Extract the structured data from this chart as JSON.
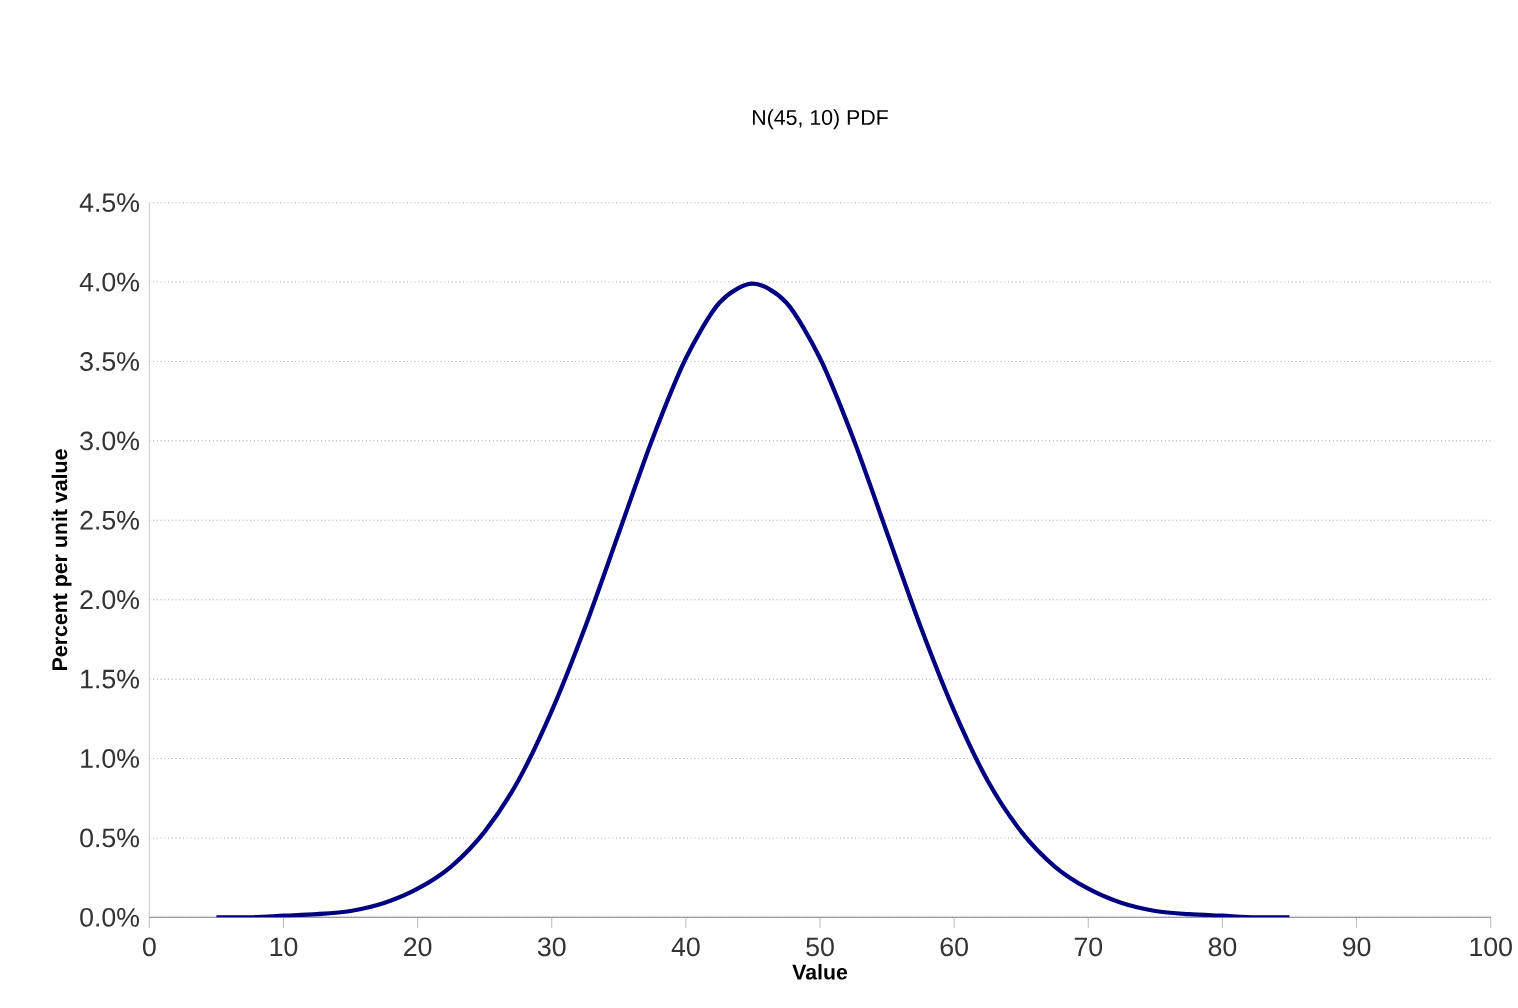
{
  "chart_data": {
    "type": "line",
    "title": "N(45, 10) PDF",
    "xlabel": "Value",
    "ylabel": "Percent per unit value",
    "series": [
      {
        "color": "#000080",
        "x": [
          5,
          7.5,
          10,
          12.5,
          15,
          17.5,
          20,
          22.5,
          25,
          27.5,
          30,
          32.5,
          35,
          37.5,
          40,
          42.5,
          45,
          47.5,
          50,
          52.5,
          55,
          57.5,
          60,
          62.5,
          65,
          67.5,
          70,
          72.5,
          75,
          77.5,
          80,
          82.5,
          85
        ],
        "values": [
          0.0,
          0.0,
          0.01,
          0.02,
          0.04,
          0.09,
          0.18,
          0.32,
          0.54,
          0.86,
          1.3,
          1.83,
          2.42,
          3.01,
          3.52,
          3.87,
          3.99,
          3.87,
          3.52,
          3.01,
          2.42,
          1.83,
          1.3,
          0.86,
          0.54,
          0.32,
          0.18,
          0.09,
          0.04,
          0.02,
          0.01,
          0.0,
          0.0
        ]
      }
    ],
    "xlim": [
      0,
      100
    ],
    "xticks": [
      0,
      10,
      20,
      30,
      40,
      50,
      60,
      70,
      80,
      90,
      100
    ],
    "ylim": [
      0,
      4.5
    ],
    "yticks": [
      {
        "value": 0,
        "label": "0.0%"
      },
      {
        "value": 0.5,
        "label": "0.5%"
      },
      {
        "value": 1,
        "label": "1.0%"
      },
      {
        "value": 1.5,
        "label": "1.5%"
      },
      {
        "value": 2,
        "label": "2.0%"
      },
      {
        "value": 2.5,
        "label": "2.5%"
      },
      {
        "value": 3,
        "label": "3.0%"
      },
      {
        "value": 3.5,
        "label": "3.5%"
      },
      {
        "value": 4,
        "label": "4.0%"
      },
      {
        "value": 4.5,
        "label": "4.5%"
      }
    ],
    "grid": "y",
    "marker": "none",
    "line_style": "solid"
  }
}
